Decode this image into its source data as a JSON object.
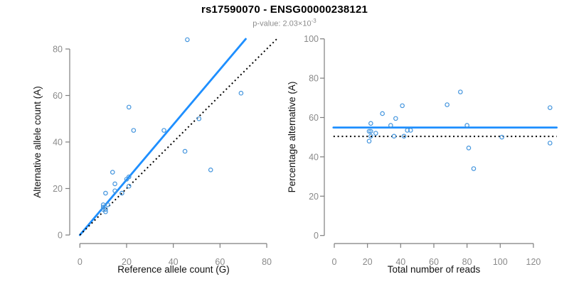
{
  "header": {
    "title": "rs17590070 - ENSG00000238121",
    "p_value_base": "p-value: 2.03×10",
    "p_value_exponent": "-3"
  },
  "colors": {
    "accent_blue": "#1E8FFF",
    "point_blue": "#4596DE",
    "identity_black": "#000000",
    "axis_gray": "#7E7E7E",
    "tick_label_gray": "#8A8A8A"
  },
  "chart_data": [
    {
      "type": "scatter",
      "panel": "left",
      "xlabel": "Reference allele count (G)",
      "ylabel": "Alternative allele count (A)",
      "xlim": [
        0,
        85
      ],
      "ylim": [
        0,
        86
      ],
      "xticks": [
        0,
        20,
        40,
        60,
        80
      ],
      "yticks": [
        0,
        20,
        40,
        60,
        80
      ],
      "grid": false,
      "legend": "none",
      "points": [
        [
          46,
          84
        ],
        [
          21,
          55
        ],
        [
          69,
          61
        ],
        [
          23,
          45
        ],
        [
          36,
          45
        ],
        [
          51,
          50
        ],
        [
          45,
          36
        ],
        [
          56,
          28
        ],
        [
          14,
          27
        ],
        [
          15,
          22
        ],
        [
          21,
          25
        ],
        [
          20,
          24
        ],
        [
          21,
          21
        ],
        [
          18,
          18
        ],
        [
          15,
          19
        ],
        [
          11,
          18
        ],
        [
          10,
          13
        ],
        [
          12,
          13
        ],
        [
          10,
          12
        ],
        [
          10,
          11
        ],
        [
          11,
          11
        ],
        [
          11,
          10
        ]
      ],
      "lines": [
        {
          "name": "fitted-allelic-ratio-line",
          "style": "solid",
          "color_key": "accent_blue",
          "x1": 0,
          "y1": 0,
          "x2": 71,
          "y2": 84.3
        },
        {
          "name": "identity-line",
          "style": "dotted",
          "color_key": "identity_black",
          "x1": 0,
          "y1": 0,
          "x2": 84.5,
          "y2": 84.5
        }
      ]
    },
    {
      "type": "scatter",
      "panel": "right",
      "xlabel": "Total number of reads",
      "ylabel": "Percentage alternative (A)",
      "xlim": [
        0,
        134
      ],
      "ylim": [
        0,
        100
      ],
      "xticks": [
        0,
        20,
        40,
        60,
        80,
        100,
        120
      ],
      "yticks": [
        0,
        20,
        40,
        60,
        80,
        100
      ],
      "grid": false,
      "legend": "none",
      "points": [
        [
          76,
          73
        ],
        [
          130,
          65
        ],
        [
          68,
          66.5
        ],
        [
          41,
          66
        ],
        [
          37,
          59.5
        ],
        [
          29,
          62
        ],
        [
          22,
          57
        ],
        [
          34,
          56
        ],
        [
          80,
          56
        ],
        [
          44,
          53.5
        ],
        [
          46,
          53.5
        ],
        [
          21,
          53
        ],
        [
          22,
          53
        ],
        [
          25,
          52
        ],
        [
          22,
          50.5
        ],
        [
          36,
          50.5
        ],
        [
          42,
          50.5
        ],
        [
          21,
          48
        ],
        [
          101,
          50
        ],
        [
          130,
          47
        ],
        [
          81,
          44.5
        ],
        [
          84,
          34
        ]
      ],
      "lines": [
        {
          "name": "mean-percentage-line",
          "style": "solid",
          "color_key": "accent_blue",
          "x1": -0.5,
          "y1": 54.9,
          "x2": 134,
          "y2": 54.9
        },
        {
          "name": "expected-50-percent-line",
          "style": "dotted",
          "color_key": "identity_black",
          "x1": -0.5,
          "y1": 50.4,
          "x2": 134,
          "y2": 50.4
        }
      ]
    }
  ]
}
